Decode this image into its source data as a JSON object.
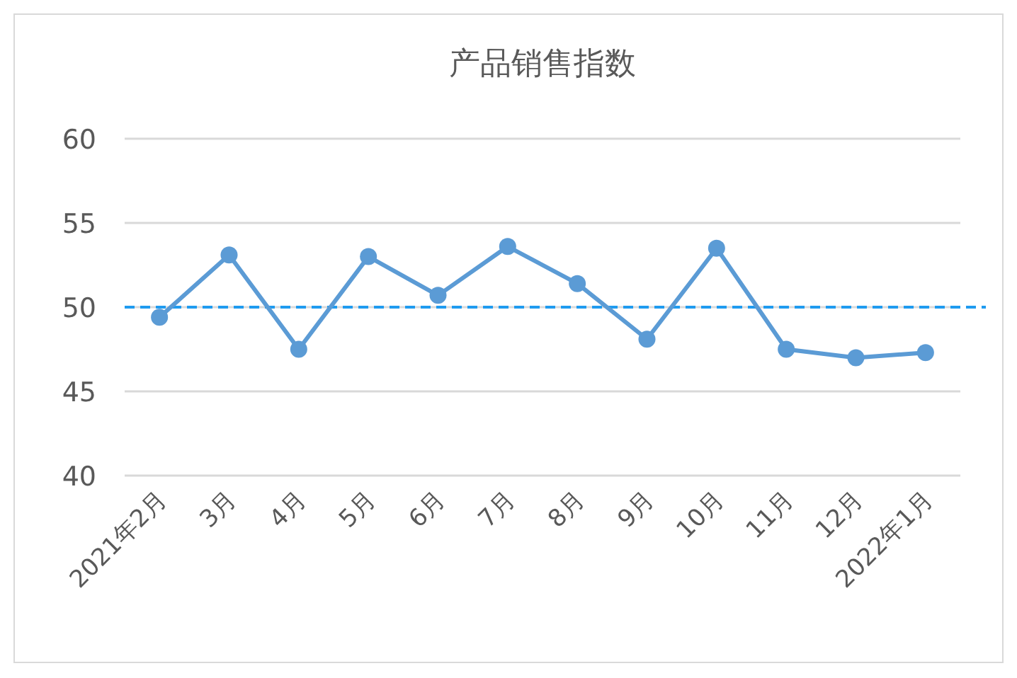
{
  "chart_data": {
    "type": "line",
    "title": "产品销售指数",
    "categories": [
      "2021年2月",
      "3月",
      "4月",
      "5月",
      "6月",
      "7月",
      "8月",
      "9月",
      "10月",
      "11月",
      "12月",
      "2022年1月"
    ],
    "series": [
      {
        "color": "#5b9bd5",
        "values": [
          49.4,
          53.1,
          47.5,
          53.0,
          50.7,
          53.6,
          51.4,
          48.1,
          53.5,
          47.5,
          47.0,
          47.3
        ]
      }
    ],
    "ylim": [
      40,
      60
    ],
    "yticks": [
      40,
      45,
      50,
      55,
      60
    ],
    "grid": "y",
    "marker": "circle",
    "ref_lines": [
      {
        "axis": "y",
        "value": 50,
        "color": "#1f9bf0",
        "line_style": "dashed"
      }
    ]
  }
}
